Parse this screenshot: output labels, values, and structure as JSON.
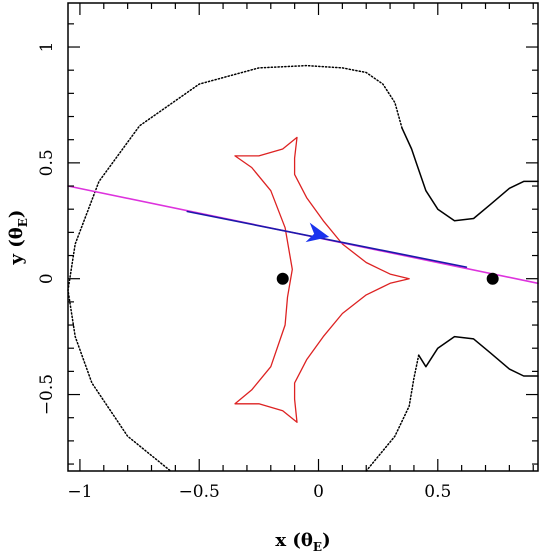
{
  "chart_data": {
    "type": "line",
    "title": "",
    "xlabel": "x (θ",
    "xlabel_sub": "E",
    "xlabel_close": ")",
    "ylabel": "y (θ",
    "ylabel_sub": "E",
    "ylabel_close": ")",
    "xlim": [
      -1.05,
      0.92
    ],
    "ylim": [
      -0.83,
      1.19
    ],
    "grid": false,
    "legend": "none",
    "x_ticks": [
      {
        "value": -1,
        "label": "−1"
      },
      {
        "value": -0.5,
        "label": "−0.5"
      },
      {
        "value": 0,
        "label": "0"
      },
      {
        "value": 0.5,
        "label": "0.5"
      }
    ],
    "y_ticks": [
      {
        "value": -0.5,
        "label": "−0.5"
      },
      {
        "value": 0,
        "label": "0"
      },
      {
        "value": 0.5,
        "label": "0.5"
      },
      {
        "value": 1,
        "label": "1"
      }
    ],
    "colors": {
      "critical_curve": "#000000",
      "caustic": "#dd2222",
      "trajectory_past": "#1a1aaa",
      "trajectory_full": "#dd33dd",
      "arrow": "#1a33ee",
      "lens": "#000000"
    },
    "series": [
      {
        "style": "critical-curve",
        "points": [
          [
            0.35,
            0.65
          ],
          [
            0.32,
            0.76
          ],
          [
            0.27,
            0.84
          ],
          [
            0.2,
            0.89
          ],
          [
            0.1,
            0.91
          ],
          [
            -0.05,
            0.92
          ],
          [
            -0.25,
            0.91
          ],
          [
            -0.5,
            0.84
          ],
          [
            -0.75,
            0.66
          ],
          [
            -0.92,
            0.42
          ],
          [
            -1.02,
            0.15
          ],
          [
            -1.05,
            -0.05
          ],
          [
            -1.02,
            -0.25
          ],
          [
            -0.95,
            -0.45
          ],
          [
            -0.8,
            -0.68
          ],
          [
            -0.62,
            -0.83
          ]
        ]
      },
      {
        "style": "critical-curve",
        "points": [
          [
            0.2,
            -0.83
          ],
          [
            0.32,
            -0.68
          ],
          [
            0.38,
            -0.55
          ],
          [
            0.4,
            -0.43
          ],
          [
            0.42,
            -0.33
          ]
        ]
      },
      {
        "style": "critical-curve-inner",
        "points": [
          [
            0.35,
            0.65
          ],
          [
            0.39,
            0.56
          ],
          [
            0.41,
            0.5
          ],
          [
            0.45,
            0.38
          ],
          [
            0.5,
            0.3
          ],
          [
            0.57,
            0.25
          ],
          [
            0.65,
            0.26
          ],
          [
            0.72,
            0.32
          ],
          [
            0.8,
            0.39
          ],
          [
            0.86,
            0.42
          ],
          [
            0.92,
            0.42
          ]
        ]
      },
      {
        "style": "critical-curve-inner",
        "points": [
          [
            0.42,
            -0.33
          ],
          [
            0.45,
            -0.38
          ],
          [
            0.5,
            -0.3
          ],
          [
            0.57,
            -0.25
          ],
          [
            0.65,
            -0.26
          ],
          [
            0.72,
            -0.32
          ],
          [
            0.8,
            -0.39
          ],
          [
            0.86,
            -0.42
          ],
          [
            0.92,
            -0.42
          ]
        ]
      },
      {
        "style": "caustic",
        "points": [
          [
            -0.35,
            0.53
          ],
          [
            -0.25,
            0.53
          ],
          [
            -0.15,
            0.56
          ],
          [
            -0.09,
            0.61
          ],
          [
            -0.1,
            0.52
          ],
          [
            -0.1,
            0.45
          ],
          [
            -0.05,
            0.35
          ],
          [
            0.02,
            0.25
          ],
          [
            0.1,
            0.15
          ],
          [
            0.2,
            0.07
          ],
          [
            0.3,
            0.02
          ],
          [
            0.38,
            0.0
          ],
          [
            0.3,
            -0.02
          ],
          [
            0.2,
            -0.07
          ],
          [
            0.1,
            -0.15
          ],
          [
            0.02,
            -0.25
          ],
          [
            -0.05,
            -0.35
          ],
          [
            -0.1,
            -0.45
          ],
          [
            -0.1,
            -0.52
          ],
          [
            -0.09,
            -0.62
          ],
          [
            -0.15,
            -0.57
          ],
          [
            -0.25,
            -0.54
          ],
          [
            -0.35,
            -0.54
          ],
          [
            -0.28,
            -0.48
          ],
          [
            -0.2,
            -0.38
          ],
          [
            -0.14,
            -0.2
          ],
          [
            -0.13,
            -0.08
          ],
          [
            -0.11,
            0.04
          ],
          [
            -0.14,
            0.22
          ],
          [
            -0.2,
            0.38
          ],
          [
            -0.28,
            0.48
          ],
          [
            -0.35,
            0.53
          ]
        ]
      },
      {
        "style": "trajectory-full",
        "points": [
          [
            -1.05,
            0.4
          ],
          [
            0.92,
            -0.02
          ]
        ]
      },
      {
        "style": "trajectory-past",
        "points": [
          [
            -0.55,
            0.29
          ],
          [
            0.62,
            0.05
          ]
        ]
      }
    ],
    "arrow": {
      "x": 0.0,
      "y": 0.19,
      "dx": 1.0,
      "dy": -0.212
    },
    "lenses": [
      [
        -0.15,
        0.0
      ],
      [
        0.73,
        0.0
      ]
    ]
  }
}
